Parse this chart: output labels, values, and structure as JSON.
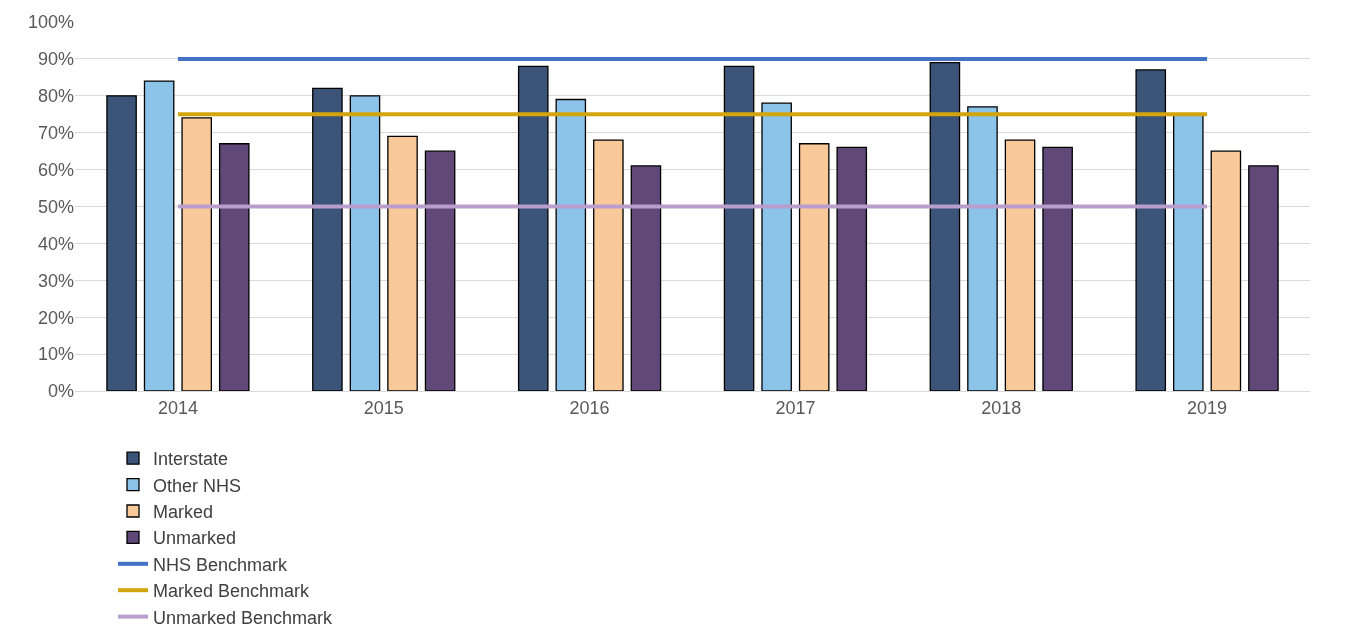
{
  "chart_data": {
    "type": "bar",
    "categories": [
      "2014",
      "2015",
      "2016",
      "2017",
      "2018",
      "2019"
    ],
    "series": [
      {
        "name": "Interstate",
        "color": "#3b5477",
        "values": [
          80,
          82,
          88,
          88,
          89,
          87
        ]
      },
      {
        "name": "Other NHS",
        "color": "#8cc3e9",
        "values": [
          84,
          80,
          79,
          78,
          77,
          75
        ]
      },
      {
        "name": "Marked",
        "color": "#f9c99a",
        "values": [
          74,
          69,
          68,
          67,
          68,
          65
        ]
      },
      {
        "name": "Unmarked",
        "color": "#604878",
        "values": [
          67,
          65,
          61,
          66,
          66,
          61
        ]
      },
      {
        "name": "NHS Benchmark",
        "type": "line",
        "color": "#4472c4",
        "values": [
          90,
          90,
          90,
          90,
          90,
          90
        ]
      },
      {
        "name": "Marked Benchmark",
        "type": "line",
        "color": "#d4a40c",
        "values": [
          75,
          75,
          75,
          75,
          75,
          75
        ]
      },
      {
        "name": "Unmarked Benchmark",
        "type": "line",
        "color": "#b99dcc",
        "values": [
          50,
          50,
          50,
          50,
          50,
          50
        ]
      }
    ],
    "ylim": [
      0,
      100
    ],
    "yticks": [
      {
        "value": 0,
        "label": "0%"
      },
      {
        "value": 10,
        "label": "10%"
      },
      {
        "value": 20,
        "label": "20%"
      },
      {
        "value": 30,
        "label": "30%"
      },
      {
        "value": 40,
        "label": "40%"
      },
      {
        "value": 50,
        "label": "50%"
      },
      {
        "value": 60,
        "label": "60%"
      },
      {
        "value": 70,
        "label": "70%"
      },
      {
        "value": 80,
        "label": "80%"
      },
      {
        "value": 90,
        "label": "90%"
      },
      {
        "value": 100,
        "label": "100%"
      }
    ],
    "grid": "y",
    "legend": "bottom",
    "marker": "none",
    "line_style": "solid"
  }
}
